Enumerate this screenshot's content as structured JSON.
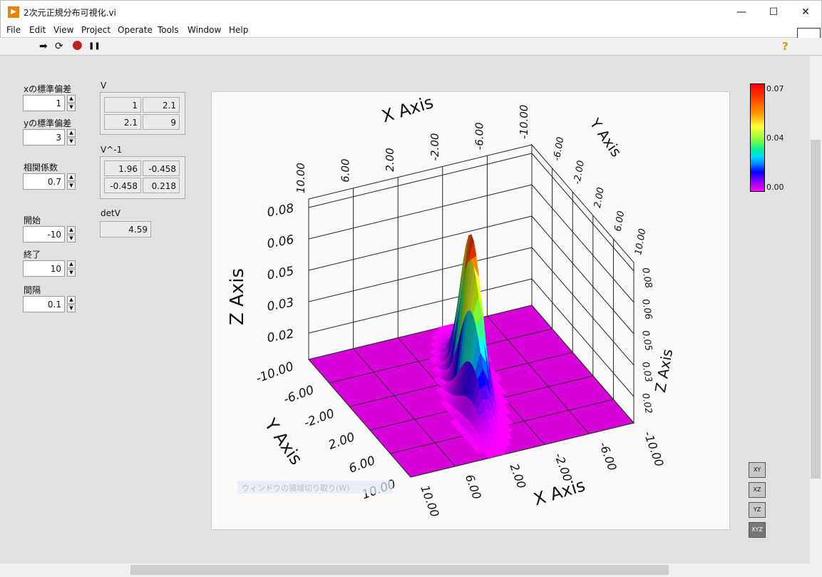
{
  "window": {
    "title": "2次元正規分布可視化.vi",
    "minimize": "—",
    "maximize": "☐",
    "close": "✕"
  },
  "menu": [
    "File",
    "Edit",
    "View",
    "Project",
    "Operate",
    "Tools",
    "Window",
    "Help"
  ],
  "toolbar": {
    "run": "➡",
    "run_continuously": "⟳",
    "abort": "●",
    "pause": "❚❚",
    "help": "?"
  },
  "controls": [
    {
      "label": "xの標準偏差",
      "value": "1"
    },
    {
      "label": "yの標準偏差",
      "value": "3"
    },
    {
      "label": "相関係数",
      "value": "0.7"
    },
    {
      "label": "開始",
      "value": "-10"
    },
    {
      "label": "終了",
      "value": "10"
    },
    {
      "label": "間隔",
      "value": "0.1"
    }
  ],
  "indicators": {
    "V": {
      "label": "V",
      "rows": [
        [
          "1",
          "2.1"
        ],
        [
          "2.1",
          "9"
        ]
      ]
    },
    "Vinv": {
      "label": "V^-1",
      "rows": [
        [
          "1.96",
          "-0.458"
        ],
        [
          "-0.458",
          "0.218"
        ]
      ]
    },
    "detV": {
      "label": "detV",
      "value": "4.59"
    }
  },
  "chart_data": {
    "type": "surface3d",
    "function": "bivariate normal density",
    "covariance": [
      [
        1,
        2.1
      ],
      [
        2.1,
        9
      ]
    ],
    "x_range": [
      -10,
      10
    ],
    "y_range": [
      -10,
      10
    ],
    "xlabel": "X Axis",
    "ylabel": "Y Axis",
    "zlabel": "Z Axis",
    "x_ticks": [
      "10.00",
      "6.00",
      "2.00",
      "-2.00",
      "-6.00",
      "-10.00"
    ],
    "y_ticks_top": [
      "-6.00",
      "-2.00",
      "2.00",
      "6.00",
      "10.00"
    ],
    "y_ticks_bottom": [
      "-10.00",
      "-6.00",
      "-2.00",
      "2.00",
      "6.00",
      "10.00"
    ],
    "x_ticks_bottom": [
      "10.00",
      "6.00",
      "2.00",
      "-2.00",
      "-6.00",
      "-10.00"
    ],
    "z_ticks": [
      "0.02",
      "0.03",
      "0.05",
      "0.06",
      "0.08"
    ],
    "peak": 0.0743,
    "colorbar": {
      "ticks": [
        "0.07",
        "0.04",
        "0.00"
      ],
      "range": [
        0,
        0.07
      ],
      "colors": [
        "#ff00ff",
        "#0000ff",
        "#00d8ff",
        "#40ff60",
        "#ffff40",
        "#ff8000",
        "#ff0000"
      ]
    },
    "grid": true
  },
  "projection_buttons": [
    "XY",
    "XZ",
    "YZ",
    "XYZ"
  ],
  "overlay": {
    "snip_text": "ウィンドウの領域切り取り(W)"
  }
}
